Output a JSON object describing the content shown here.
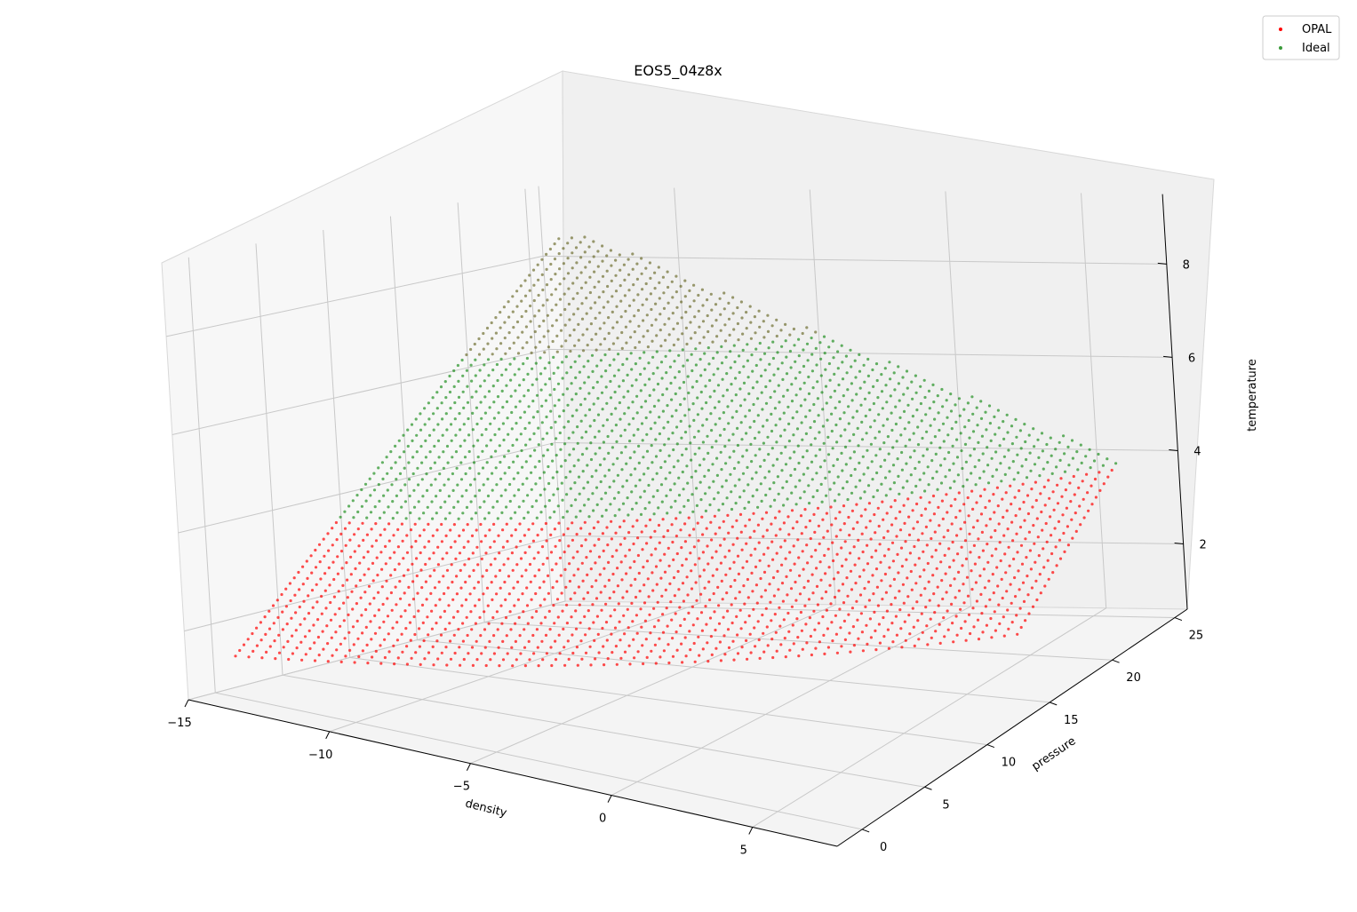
{
  "chart_data": {
    "type": "scatter",
    "projection": "3d",
    "title": "EOS5_04z8x",
    "xlabel": "density",
    "ylabel": "pressure",
    "zlabel": "temperature",
    "xlim": [
      -15,
      8
    ],
    "ylim": [
      -2,
      26
    ],
    "zlim": [
      0.6,
      9.5
    ],
    "x_ticks": [
      -15,
      -10,
      -5,
      0,
      5
    ],
    "y_ticks": [
      0,
      5,
      10,
      15,
      20,
      25
    ],
    "z_ticks": [
      2,
      4,
      6,
      8
    ],
    "grid": true,
    "legend_position": "top-right",
    "surface": {
      "density_min": -14,
      "density_max": 6,
      "temperature_min": 1.5,
      "temperature_max": 8.5
    },
    "series": [
      {
        "name": "OPAL",
        "color": "#ff0000",
        "marker": "dot"
      },
      {
        "name": "Ideal",
        "color": "#008000",
        "marker": "dot"
      }
    ]
  }
}
